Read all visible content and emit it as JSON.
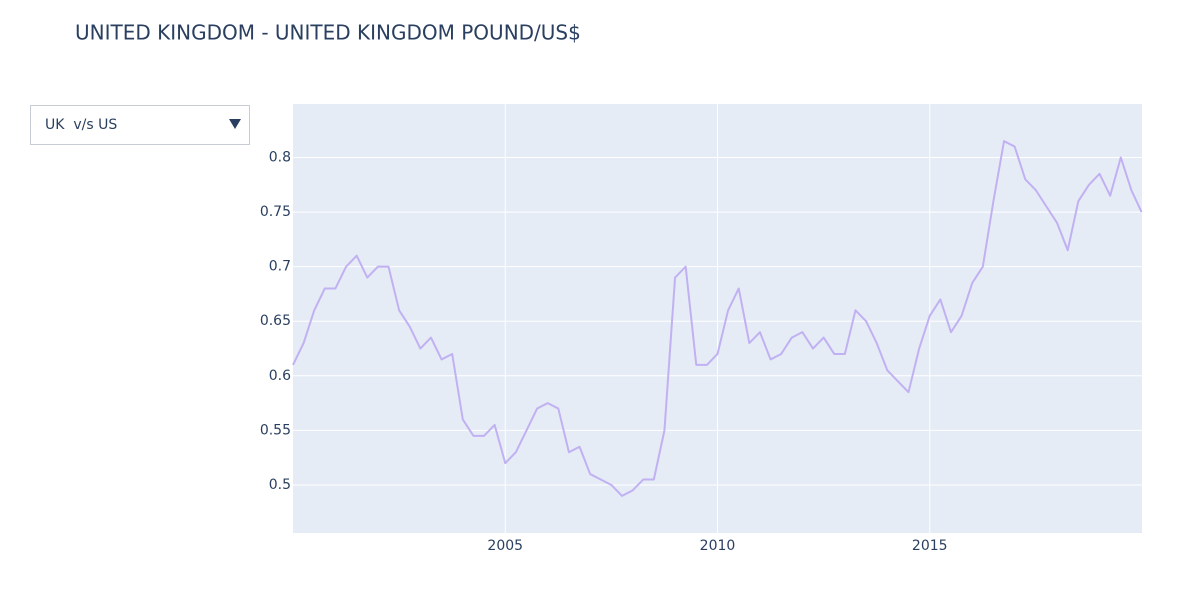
{
  "chart_data": {
    "type": "line",
    "title": "UNITED KINGDOM - UNITED KINGDOM POUND/US$",
    "dropdown": {
      "selected": "UK  v/s US"
    },
    "color": "#c1b1f2",
    "grid": true,
    "xlim": [
      2000,
      2020
    ],
    "xticks": [
      2005,
      2010,
      2015
    ],
    "ylim": [
      0.456,
      0.849
    ],
    "yticks": [
      0.5,
      0.55,
      0.6,
      0.65,
      0.7,
      0.75,
      0.8
    ],
    "x": [
      2000,
      2000.25,
      2000.5,
      2000.75,
      2001,
      2001.25,
      2001.5,
      2001.75,
      2002,
      2002.25,
      2002.5,
      2002.75,
      2003,
      2003.25,
      2003.5,
      2003.75,
      2004,
      2004.25,
      2004.5,
      2004.75,
      2005,
      2005.25,
      2005.5,
      2005.75,
      2006,
      2006.25,
      2006.5,
      2006.75,
      2007,
      2007.25,
      2007.5,
      2007.75,
      2008,
      2008.25,
      2008.5,
      2008.75,
      2009,
      2009.25,
      2009.5,
      2009.75,
      2010,
      2010.25,
      2010.5,
      2010.75,
      2011,
      2011.25,
      2011.5,
      2011.75,
      2012,
      2012.25,
      2012.5,
      2012.75,
      2013,
      2013.25,
      2013.5,
      2013.75,
      2014,
      2014.25,
      2014.5,
      2014.75,
      2015,
      2015.25,
      2015.5,
      2015.75,
      2016,
      2016.25,
      2016.5,
      2016.75,
      2017,
      2017.25,
      2017.5,
      2017.75,
      2018,
      2018.25,
      2018.5,
      2018.75,
      2019,
      2019.25,
      2019.5,
      2019.75,
      2019.99
    ],
    "values": [
      0.61,
      0.63,
      0.66,
      0.68,
      0.68,
      0.7,
      0.71,
      0.69,
      0.7,
      0.7,
      0.66,
      0.645,
      0.625,
      0.635,
      0.615,
      0.62,
      0.56,
      0.545,
      0.545,
      0.555,
      0.52,
      0.53,
      0.55,
      0.57,
      0.575,
      0.57,
      0.53,
      0.535,
      0.51,
      0.505,
      0.5,
      0.49,
      0.495,
      0.505,
      0.505,
      0.55,
      0.69,
      0.7,
      0.61,
      0.61,
      0.62,
      0.66,
      0.68,
      0.63,
      0.64,
      0.615,
      0.62,
      0.635,
      0.64,
      0.625,
      0.635,
      0.62,
      0.62,
      0.66,
      0.65,
      0.63,
      0.605,
      0.595,
      0.585,
      0.625,
      0.655,
      0.67,
      0.64,
      0.655,
      0.685,
      0.7,
      0.76,
      0.815,
      0.81,
      0.78,
      0.77,
      0.755,
      0.74,
      0.715,
      0.76,
      0.775,
      0.785,
      0.765,
      0.8,
      0.77,
      0.75
    ]
  }
}
